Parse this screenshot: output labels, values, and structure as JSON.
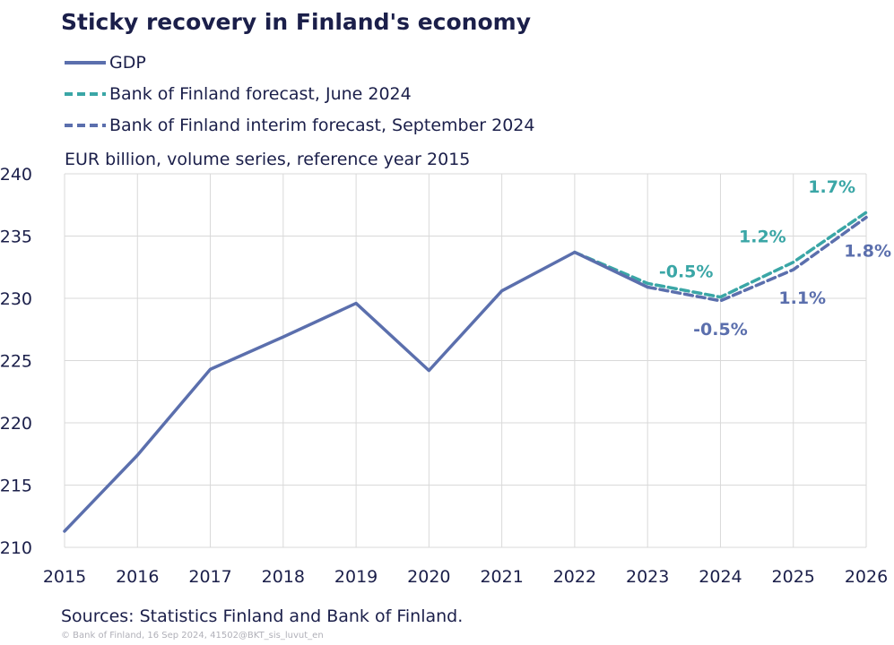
{
  "title": "Sticky recovery in Finland's economy",
  "unit_label": "EUR billion, volume series, reference year 2015",
  "sources": "Sources: Statistics Finland and Bank of Finland.",
  "copyright": "© Bank of Finland, 16 Sep 2024, 41502@BKT_sis_luvut_en",
  "colors": {
    "gdp": "#5b6fad",
    "june_forecast": "#3aa6a6",
    "sept_forecast": "#5b6fad",
    "grid": "#d9d9d9",
    "axis_text": "#1b1f4a"
  },
  "legend": [
    {
      "label": "GDP",
      "style": "solid",
      "color": "#5b6fad"
    },
    {
      "label": "Bank of Finland forecast, June 2024",
      "style": "dashed",
      "color": "#3aa6a6"
    },
    {
      "label": "Bank of Finland interim forecast, September 2024",
      "style": "dashed",
      "color": "#5b6fad"
    }
  ],
  "chart_data": {
    "type": "line",
    "ylim": [
      210,
      240
    ],
    "yticks": [
      210,
      215,
      220,
      225,
      230,
      235,
      240
    ],
    "x": [
      "2015",
      "2016",
      "2017",
      "2018",
      "2019",
      "2020",
      "2021",
      "2022",
      "2023",
      "2024",
      "2025",
      "2026"
    ],
    "grid": true,
    "series": [
      {
        "name": "GDP",
        "style": "solid",
        "color": "#5b6fad",
        "x": [
          "2015",
          "2016",
          "2017",
          "2018",
          "2019",
          "2020",
          "2021",
          "2022",
          "2023"
        ],
        "values": [
          211.3,
          217.4,
          224.3,
          226.9,
          229.6,
          224.2,
          230.6,
          233.7,
          230.9
        ]
      },
      {
        "name": "Bank of Finland forecast, June 2024",
        "style": "dashed",
        "color": "#3aa6a6",
        "x": [
          "2022",
          "2023",
          "2024",
          "2025",
          "2026"
        ],
        "values": [
          233.7,
          231.2,
          230.1,
          232.9,
          236.9
        ]
      },
      {
        "name": "Bank of Finland interim forecast, September 2024",
        "style": "dashed",
        "color": "#5b6fad",
        "x": [
          "2023",
          "2024",
          "2025",
          "2026"
        ],
        "values": [
          230.9,
          229.8,
          232.3,
          236.5
        ]
      }
    ],
    "annotations": [
      {
        "text": "-0.5%",
        "series": 1,
        "color": "#3aa6a6"
      },
      {
        "text": "1.2%",
        "series": 1,
        "color": "#3aa6a6"
      },
      {
        "text": "1.7%",
        "series": 1,
        "color": "#3aa6a6"
      },
      {
        "text": "-0.5%",
        "series": 2,
        "color": "#5b6fad"
      },
      {
        "text": "1.1%",
        "series": 2,
        "color": "#5b6fad"
      },
      {
        "text": "1.8%",
        "series": 2,
        "color": "#5b6fad"
      }
    ]
  }
}
